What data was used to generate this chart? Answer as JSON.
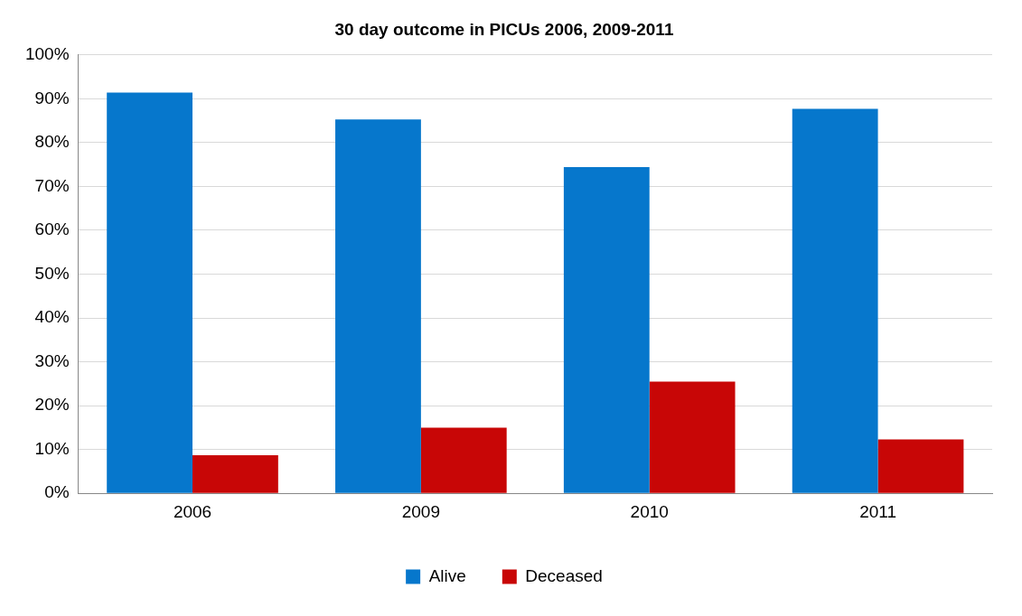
{
  "chart_data": {
    "type": "bar",
    "title": "30 day outcome in PICUs 2006, 2009-2011",
    "categories": [
      "2006",
      "2009",
      "2010",
      "2011"
    ],
    "series": [
      {
        "name": "Alive",
        "color": "#0677cc",
        "values": [
          91.4,
          85.3,
          74.4,
          87.7
        ]
      },
      {
        "name": "Deceased",
        "color": "#c80606",
        "values": [
          8.7,
          15.0,
          25.5,
          12.3
        ]
      }
    ],
    "ylim": [
      0,
      100
    ],
    "yticks": [
      {
        "value": 0,
        "label": "0%"
      },
      {
        "value": 10,
        "label": "10%"
      },
      {
        "value": 20,
        "label": "20%"
      },
      {
        "value": 30,
        "label": "30%"
      },
      {
        "value": 40,
        "label": "40%"
      },
      {
        "value": 50,
        "label": "50%"
      },
      {
        "value": 60,
        "label": "60%"
      },
      {
        "value": 70,
        "label": "70%"
      },
      {
        "value": 80,
        "label": "80%"
      },
      {
        "value": 90,
        "label": "90%"
      },
      {
        "value": 100,
        "label": "100%"
      }
    ],
    "grid": "y",
    "legend": "bottom"
  }
}
